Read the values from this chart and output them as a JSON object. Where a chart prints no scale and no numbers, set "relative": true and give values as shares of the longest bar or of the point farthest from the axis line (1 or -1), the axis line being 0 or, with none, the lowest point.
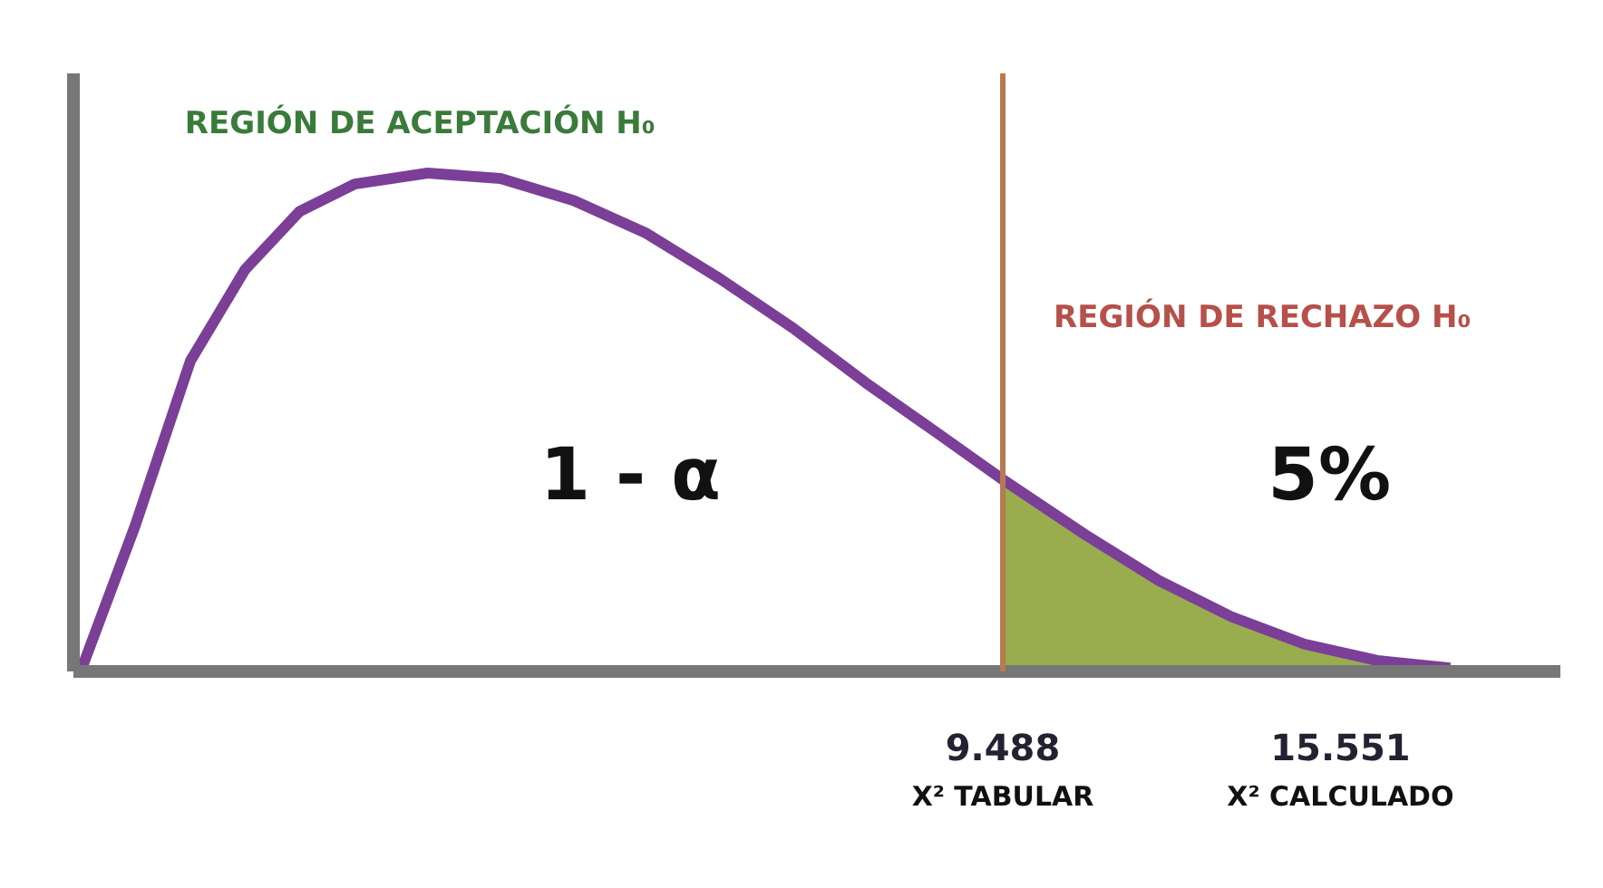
{
  "chart_data": {
    "type": "line",
    "relative": true,
    "xlim": [
      -7.2,
      19.5
    ],
    "xticks": [
      9.488,
      15.551
    ],
    "series": [
      {
        "color": "#7b3f98",
        "x": [
          -7.07,
          -6.09,
          -5.1,
          -4.12,
          -3.14,
          -2.15,
          -0.84,
          0.47,
          1.78,
          3.09,
          4.41,
          5.72,
          7.03,
          8.34,
          9.488,
          10.96,
          12.28,
          13.59,
          14.9,
          16.21,
          17.52
        ],
        "values": [
          0,
          0.293,
          0.623,
          0.806,
          0.923,
          0.978,
          1.0,
          0.989,
          0.945,
          0.879,
          0.788,
          0.689,
          0.579,
          0.476,
          0.385,
          0.275,
          0.183,
          0.11,
          0.055,
          0.022,
          0.007
        ]
      },
      {
        "type": "area",
        "color": "#93a845",
        "x": [
          9.488,
          10.96,
          12.28,
          13.59,
          14.9,
          16.21,
          17.52
        ],
        "values": [
          0.385,
          0.275,
          0.183,
          0.11,
          0.055,
          0.022,
          0.007
        ]
      }
    ],
    "ref_lines": [
      {
        "axis": "x",
        "value": 9.488,
        "color": "#b87a50"
      }
    ],
    "annotations": [
      "REGIÓN DE ACEPTACIÓN H₀",
      "REGIÓN DE RECHAZO H₀",
      "1 - α",
      "5%",
      "X² TABULAR",
      "X² CALCULADO"
    ],
    "grid": false
  }
}
